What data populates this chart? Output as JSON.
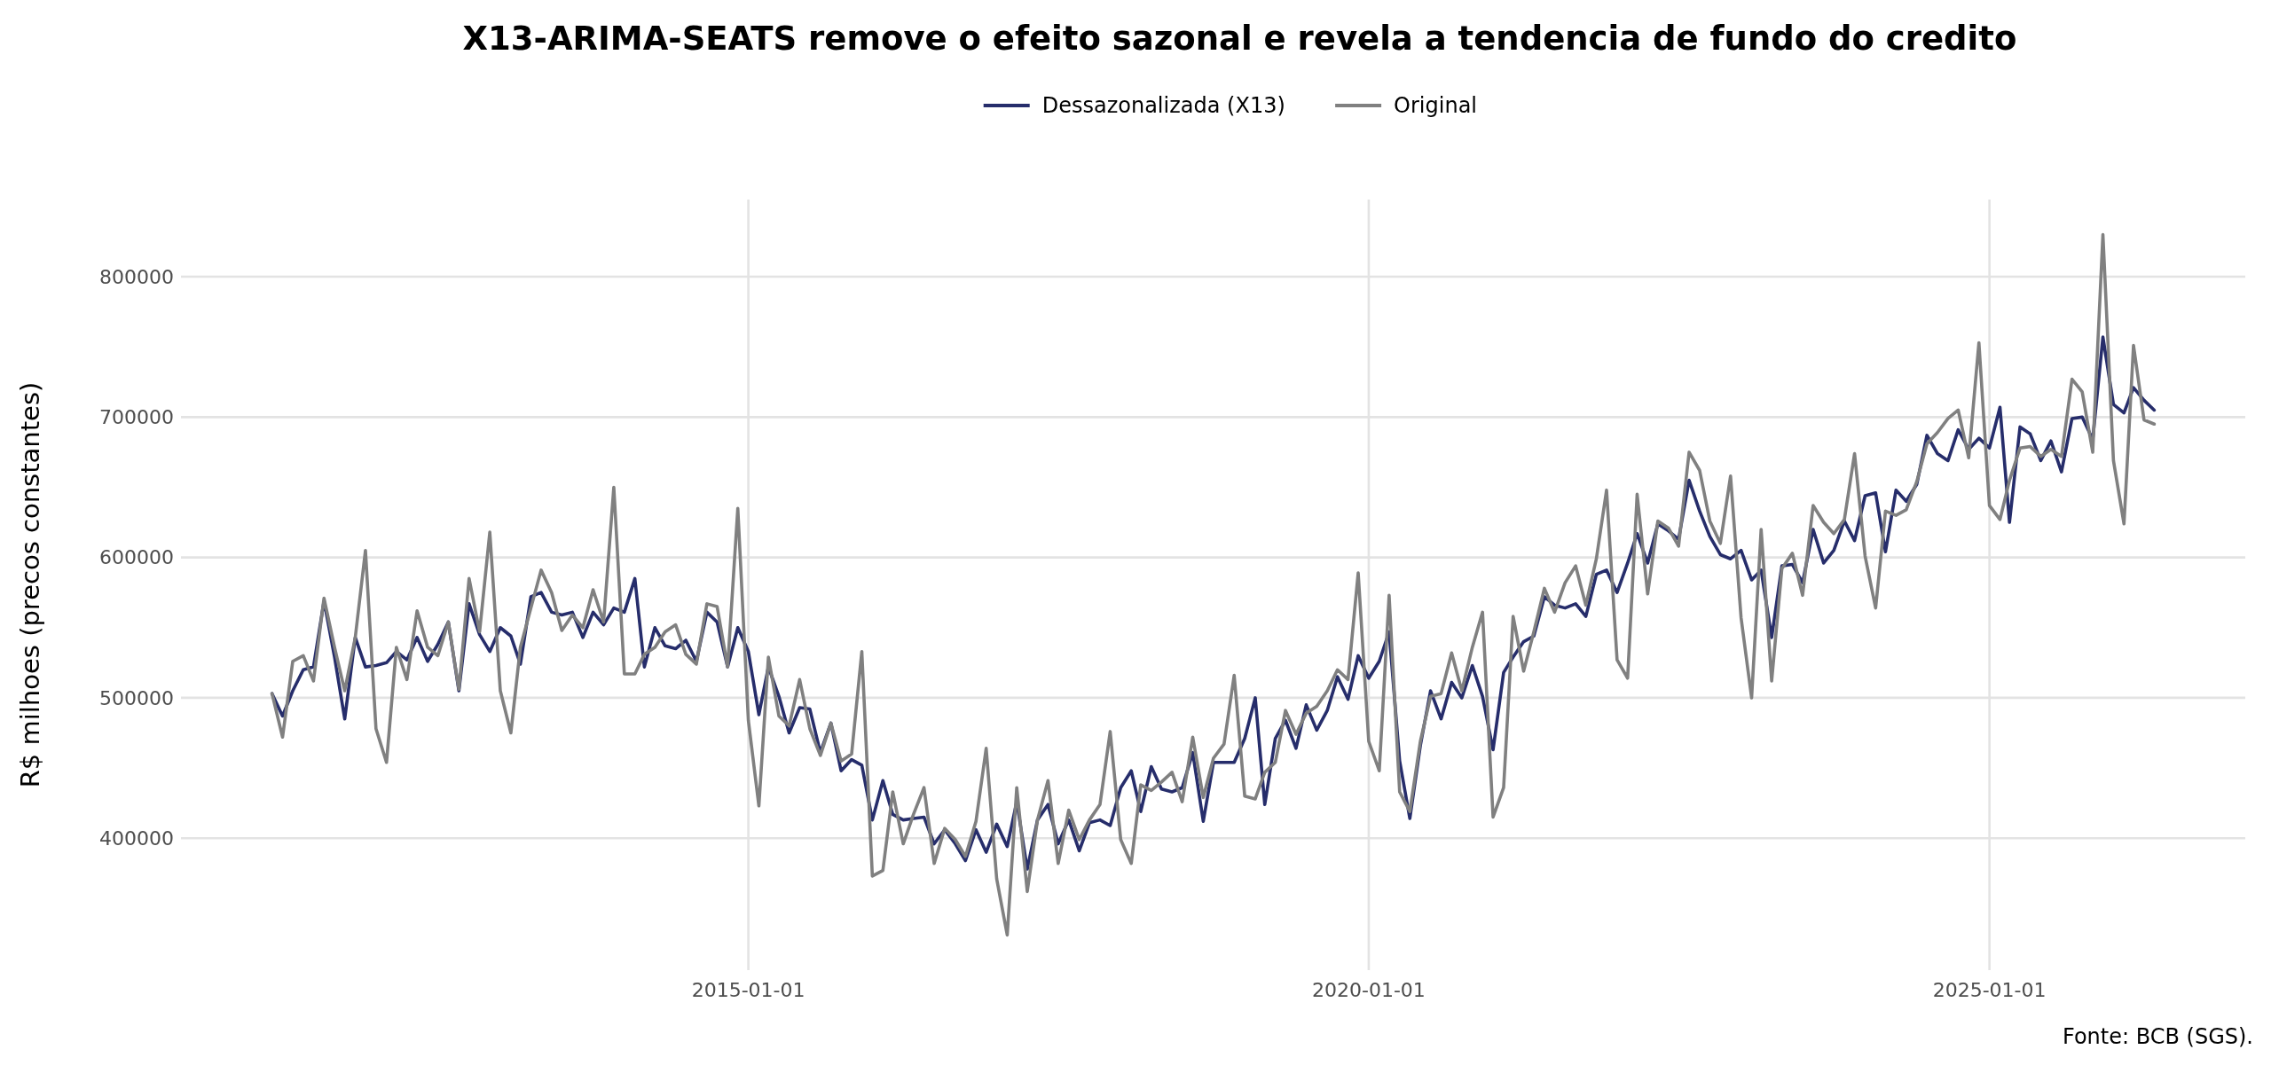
{
  "chart_data": {
    "type": "line",
    "title": "X13-ARIMA-SEATS remove o efeito sazonal e revela a tendencia de fundo do credito",
    "ylabel": "R$ milhoes (precos constantes)",
    "annotations": [
      "Fonte: BCB (SGS)."
    ],
    "legend": "top",
    "grid": true,
    "xlim": [
      "2010-06-06",
      "2027-01-24"
    ],
    "xticks": [
      "2015-01-01",
      "2020-01-01",
      "2025-01-01"
    ],
    "ylim": [
      306000,
      855000
    ],
    "yticks": [
      400000,
      500000,
      600000,
      700000,
      800000
    ],
    "x": [
      "2011-03",
      "2011-04",
      "2011-05",
      "2011-06",
      "2011-07",
      "2011-08",
      "2011-09",
      "2011-10",
      "2011-11",
      "2011-12",
      "2012-01",
      "2012-02",
      "2012-03",
      "2012-04",
      "2012-05",
      "2012-06",
      "2012-07",
      "2012-08",
      "2012-09",
      "2012-10",
      "2012-11",
      "2012-12",
      "2013-01",
      "2013-02",
      "2013-03",
      "2013-04",
      "2013-05",
      "2013-06",
      "2013-07",
      "2013-08",
      "2013-09",
      "2013-10",
      "2013-11",
      "2013-12",
      "2014-01",
      "2014-02",
      "2014-03",
      "2014-04",
      "2014-05",
      "2014-06",
      "2014-07",
      "2014-08",
      "2014-09",
      "2014-10",
      "2014-11",
      "2014-12",
      "2015-01",
      "2015-02",
      "2015-03",
      "2015-04",
      "2015-05",
      "2015-06",
      "2015-07",
      "2015-08",
      "2015-09",
      "2015-10",
      "2015-11",
      "2015-12",
      "2016-01",
      "2016-02",
      "2016-03",
      "2016-04",
      "2016-05",
      "2016-06",
      "2016-07",
      "2016-08",
      "2016-09",
      "2016-10",
      "2016-11",
      "2016-12",
      "2017-01",
      "2017-02",
      "2017-03",
      "2017-04",
      "2017-05",
      "2017-06",
      "2017-07",
      "2017-08",
      "2017-09",
      "2017-10",
      "2017-11",
      "2017-12",
      "2018-01",
      "2018-02",
      "2018-03",
      "2018-04",
      "2018-05",
      "2018-06",
      "2018-07",
      "2018-08",
      "2018-09",
      "2018-10",
      "2018-11",
      "2018-12",
      "2019-01",
      "2019-02",
      "2019-03",
      "2019-04",
      "2019-05",
      "2019-06",
      "2019-07",
      "2019-08",
      "2019-09",
      "2019-10",
      "2019-11",
      "2019-12",
      "2020-01",
      "2020-02",
      "2020-03",
      "2020-04",
      "2020-05",
      "2020-06",
      "2020-07",
      "2020-08",
      "2020-09",
      "2020-10",
      "2020-11",
      "2020-12",
      "2021-01",
      "2021-02",
      "2021-03",
      "2021-04",
      "2021-05",
      "2021-06",
      "2021-07",
      "2021-08",
      "2021-09",
      "2021-10",
      "2021-11",
      "2021-12",
      "2022-01",
      "2022-02",
      "2022-03",
      "2022-04",
      "2022-05",
      "2022-06",
      "2022-07",
      "2022-08",
      "2022-09",
      "2022-10",
      "2022-11",
      "2022-12",
      "2023-01",
      "2023-02",
      "2023-03",
      "2023-04",
      "2023-05",
      "2023-06",
      "2023-07",
      "2023-08",
      "2023-09",
      "2023-10",
      "2023-11",
      "2023-12",
      "2024-01",
      "2024-02",
      "2024-03",
      "2024-04",
      "2024-05",
      "2024-06",
      "2024-07",
      "2024-08",
      "2024-09",
      "2024-10",
      "2024-11",
      "2024-12",
      "2025-01",
      "2025-02",
      "2025-03",
      "2025-04",
      "2025-05",
      "2025-06",
      "2025-07",
      "2025-08",
      "2025-09",
      "2025-10",
      "2025-11",
      "2025-12",
      "2026-01",
      "2026-02",
      "2026-03",
      "2026-04",
      "2026-05"
    ],
    "series": [
      {
        "name": "Dessazonalizada (X13)",
        "color": "#262d6b",
        "values": [
          503000,
          487000,
          505000,
          520000,
          522000,
          569000,
          529000,
          485000,
          543000,
          522000,
          523000,
          525000,
          533000,
          527000,
          543000,
          526000,
          538000,
          554000,
          505000,
          567000,
          545000,
          533000,
          550000,
          544000,
          524000,
          572000,
          575000,
          561000,
          559000,
          561000,
          543000,
          561000,
          552000,
          564000,
          561000,
          585000,
          522000,
          550000,
          537000,
          535000,
          541000,
          526000,
          561000,
          554000,
          522000,
          550000,
          533000,
          488000,
          522000,
          501000,
          475000,
          493000,
          492000,
          461000,
          482000,
          448000,
          456000,
          452000,
          413000,
          441000,
          417000,
          413000,
          414000,
          415000,
          396000,
          406000,
          396000,
          384000,
          406000,
          390000,
          410000,
          394000,
          426000,
          378000,
          413000,
          424000,
          396000,
          413000,
          391000,
          411000,
          413000,
          409000,
          436000,
          448000,
          419000,
          451000,
          435000,
          433000,
          436000,
          461000,
          412000,
          454000,
          454000,
          454000,
          471000,
          500000,
          424000,
          471000,
          484000,
          464000,
          495000,
          477000,
          491000,
          515000,
          499000,
          530000,
          514000,
          526000,
          547000,
          455000,
          414000,
          466000,
          505000,
          485000,
          511000,
          500000,
          523000,
          501000,
          463000,
          518000,
          529000,
          540000,
          544000,
          572000,
          566000,
          564000,
          567000,
          558000,
          588000,
          591000,
          575000,
          596000,
          617000,
          596000,
          624000,
          619000,
          613000,
          655000,
          633000,
          615000,
          602000,
          599000,
          605000,
          584000,
          591000,
          543000,
          594000,
          595000,
          582000,
          620000,
          596000,
          605000,
          626000,
          612000,
          644000,
          646000,
          604000,
          648000,
          640000,
          652000,
          687000,
          674000,
          669000,
          691000,
          677000,
          685000,
          678000,
          707000,
          625000,
          693000,
          688000,
          669000,
          683000,
          661000,
          699000,
          700000,
          684000,
          757000,
          709000,
          703000,
          721000,
          712000,
          705000
        ]
      },
      {
        "name": "Original",
        "color": "#808080",
        "values": [
          503000,
          472000,
          526000,
          530000,
          512000,
          571000,
          536000,
          505000,
          543000,
          605000,
          478000,
          454000,
          536000,
          513000,
          562000,
          536000,
          530000,
          554000,
          506000,
          585000,
          547000,
          618000,
          505000,
          475000,
          536000,
          564000,
          591000,
          575000,
          548000,
          559000,
          550000,
          577000,
          554000,
          650000,
          517000,
          517000,
          531000,
          536000,
          547000,
          552000,
          531000,
          524000,
          567000,
          565000,
          522000,
          635000,
          484000,
          423000,
          529000,
          487000,
          480000,
          513000,
          478000,
          459000,
          482000,
          455000,
          460000,
          533000,
          373000,
          377000,
          433000,
          396000,
          417000,
          436000,
          382000,
          407000,
          399000,
          387000,
          412000,
          464000,
          371000,
          331000,
          436000,
          362000,
          413000,
          441000,
          382000,
          420000,
          399000,
          413000,
          424000,
          476000,
          399000,
          382000,
          438000,
          434000,
          440000,
          447000,
          426000,
          472000,
          429000,
          457000,
          467000,
          516000,
          430000,
          428000,
          447000,
          454000,
          491000,
          474000,
          489000,
          494000,
          505000,
          520000,
          513000,
          589000,
          469000,
          448000,
          573000,
          433000,
          419000,
          469000,
          501000,
          503000,
          532000,
          505000,
          536000,
          561000,
          415000,
          436000,
          558000,
          519000,
          547000,
          578000,
          561000,
          582000,
          594000,
          566000,
          599000,
          648000,
          527000,
          514000,
          645000,
          574000,
          626000,
          621000,
          608000,
          675000,
          662000,
          626000,
          610000,
          658000,
          557000,
          500000,
          620000,
          512000,
          592000,
          603000,
          573000,
          637000,
          625000,
          617000,
          627000,
          674000,
          601000,
          564000,
          633000,
          630000,
          634000,
          654000,
          681000,
          689000,
          699000,
          705000,
          671000,
          753000,
          637000,
          627000,
          655000,
          678000,
          679000,
          672000,
          677000,
          672000,
          727000,
          718000,
          675000,
          830000,
          669000,
          624000,
          751000,
          698000,
          695000
        ]
      }
    ]
  }
}
